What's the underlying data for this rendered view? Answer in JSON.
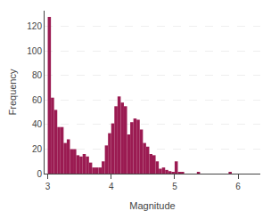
{
  "chart_data": {
    "type": "histogram",
    "xlabel": "Magnitude",
    "ylabel": "Frequency",
    "color": "#9B1B52",
    "bins": [
      3.0,
      3.05,
      3.1,
      3.15,
      3.2,
      3.25,
      3.3,
      3.35,
      3.4,
      3.45,
      3.5,
      3.55,
      3.6,
      3.65,
      3.7,
      3.75,
      3.8,
      3.85,
      3.9,
      3.95,
      4.0,
      4.05,
      4.1,
      4.15,
      4.2,
      4.25,
      4.3,
      4.35,
      4.4,
      4.45,
      4.5,
      4.55,
      4.6,
      4.65,
      4.7,
      4.75,
      4.8,
      4.85,
      4.9,
      4.95,
      5.0,
      5.05,
      5.1,
      5.15,
      5.2,
      5.25,
      5.3,
      5.35,
      5.4,
      5.45,
      5.5,
      5.55,
      5.6,
      5.65,
      5.7,
      5.75,
      5.8,
      5.85,
      5.9,
      5.95,
      6.0,
      6.05,
      6.1,
      6.15,
      6.2
    ],
    "values": [
      128,
      62,
      52,
      38,
      38,
      25,
      28,
      20,
      20,
      15,
      14,
      16,
      14,
      9,
      5,
      5,
      5,
      10,
      23,
      33,
      41,
      55,
      63,
      58,
      55,
      32,
      42,
      45,
      44,
      36,
      25,
      22,
      16,
      15,
      10,
      4,
      5,
      3,
      2,
      1,
      10,
      1,
      1,
      0,
      0,
      0,
      0,
      1,
      0,
      0,
      0,
      0,
      0,
      0,
      0,
      0,
      0,
      1,
      0,
      0,
      0,
      0,
      0,
      0
    ],
    "xlim": [
      2.95,
      6.35
    ],
    "ylim": [
      0,
      133
    ],
    "xticks": [
      3,
      4,
      5,
      6
    ],
    "yticks": [
      0,
      20,
      40,
      60,
      80,
      100,
      120
    ],
    "grid": true
  }
}
